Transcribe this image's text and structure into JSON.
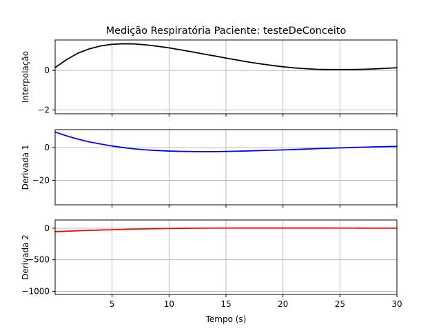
{
  "figure": {
    "title": "Medição Respiratória Paciente: testeDeConceito",
    "xlabel": "Tempo (s)"
  },
  "chart_data": [
    {
      "type": "line",
      "ylabel": "Interpolação",
      "xlim": [
        0,
        30
      ],
      "ylim": [
        -2.2,
        1.55
      ],
      "xticks": [
        5,
        10,
        15,
        20,
        25,
        30
      ],
      "yticks": [
        -2,
        0
      ],
      "grid": true,
      "show_xtick_labels": false,
      "series": [
        {
          "color": "#000000",
          "x": [
            0,
            1,
            2,
            3,
            4,
            5,
            6,
            7,
            8,
            9,
            10,
            11,
            12,
            13,
            14,
            15,
            16,
            17,
            18,
            19,
            20,
            21,
            22,
            23,
            24,
            25,
            26,
            27,
            28,
            29,
            30
          ],
          "y": [
            0.15,
            0.55,
            0.88,
            1.1,
            1.25,
            1.33,
            1.36,
            1.35,
            1.3,
            1.23,
            1.15,
            1.05,
            0.95,
            0.84,
            0.74,
            0.63,
            0.53,
            0.43,
            0.34,
            0.26,
            0.19,
            0.13,
            0.09,
            0.06,
            0.05,
            0.05,
            0.05,
            0.06,
            0.08,
            0.11,
            0.14
          ]
        }
      ]
    },
    {
      "type": "line",
      "ylabel": "Derivada 1",
      "xlim": [
        0,
        30
      ],
      "ylim": [
        -35,
        11
      ],
      "xticks": [
        5,
        10,
        15,
        20,
        25,
        30
      ],
      "yticks": [
        -20,
        0
      ],
      "grid": true,
      "show_xtick_labels": false,
      "series": [
        {
          "color": "#0000ff",
          "x": [
            0,
            1,
            2,
            3,
            4,
            5,
            6,
            7,
            8,
            9,
            10,
            11,
            12,
            13,
            14,
            15,
            16,
            17,
            18,
            19,
            20,
            21,
            22,
            23,
            24,
            25,
            26,
            27,
            28,
            29,
            30
          ],
          "y": [
            9.5,
            7.2,
            5.2,
            3.5,
            2.2,
            1.0,
            0.0,
            -0.8,
            -1.4,
            -1.8,
            -2.1,
            -2.3,
            -2.4,
            -2.5,
            -2.45,
            -2.35,
            -2.2,
            -2.0,
            -1.8,
            -1.6,
            -1.4,
            -1.15,
            -0.9,
            -0.65,
            -0.4,
            -0.15,
            0.05,
            0.25,
            0.45,
            0.6,
            0.75
          ]
        }
      ]
    },
    {
      "type": "line",
      "ylabel": "Derivada 2",
      "xlim": [
        0,
        30
      ],
      "ylim": [
        -1050,
        130
      ],
      "xticks": [
        5,
        10,
        15,
        20,
        25,
        30
      ],
      "yticks": [
        -1000,
        -500,
        0
      ],
      "grid": true,
      "show_xtick_labels": true,
      "xticklabels": [
        "5",
        "10",
        "15",
        "20",
        "25",
        "30"
      ],
      "series": [
        {
          "color": "#ff0000",
          "x": [
            0,
            1,
            2,
            3,
            4,
            5,
            6,
            7,
            8,
            9,
            10,
            11,
            12,
            13,
            14,
            15,
            16,
            17,
            18,
            19,
            20,
            21,
            22,
            23,
            24,
            25,
            26,
            27,
            28,
            29,
            30
          ],
          "y": [
            -55,
            -48,
            -41,
            -35,
            -29,
            -24,
            -19,
            -15,
            -11,
            -8,
            -5,
            -3,
            -1,
            0.5,
            1.5,
            2,
            2.5,
            2.5,
            2.5,
            2.5,
            2.5,
            2.5,
            2.5,
            2.5,
            2.5,
            2,
            1.5,
            1,
            0.5,
            0,
            0
          ]
        }
      ]
    }
  ]
}
